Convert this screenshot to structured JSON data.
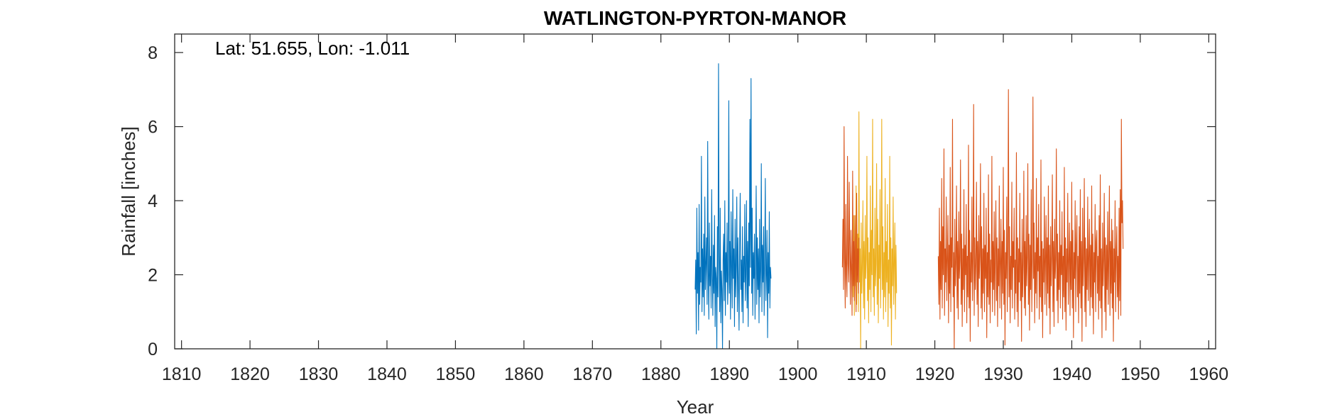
{
  "chart_data": {
    "type": "line",
    "title": "WATLINGTON-PYRTON-MANOR",
    "xlabel": "Year",
    "ylabel": "Rainfall [inches]",
    "annotation": "Lat: 51.655, Lon: -1.011",
    "xlim": [
      1809,
      1961
    ],
    "ylim": [
      0,
      8.5
    ],
    "xticks": [
      1810,
      1820,
      1830,
      1840,
      1850,
      1860,
      1870,
      1880,
      1890,
      1900,
      1910,
      1920,
      1930,
      1940,
      1950,
      1960
    ],
    "yticks": [
      0,
      2,
      4,
      6,
      8
    ],
    "grid": false,
    "box": true,
    "series": [
      {
        "color": "#0072BD",
        "x_start": 1885.0,
        "x_step": 0.0833,
        "values": [
          1.6,
          2.4,
          0.4,
          3.8,
          1.5,
          2.6,
          0.5,
          3.9,
          1.2,
          2.2,
          1.8,
          5.2,
          1.0,
          2.7,
          1.4,
          3.1,
          0.9,
          4.1,
          1.6,
          2.3,
          3.0,
          1.2,
          5.6,
          2.1,
          0.8,
          3.4,
          1.7,
          2.5,
          1.1,
          4.3,
          2.0,
          0.9,
          2.8,
          1.5,
          3.6,
          0.6,
          2.2,
          1.9,
          0.0,
          3.3,
          1.4,
          7.7,
          2.5,
          1.0,
          3.8,
          0.7,
          2.1,
          1.6,
          0.0,
          2.4,
          3.1,
          1.3,
          4.0,
          0.9,
          2.6,
          1.8,
          3.4,
          1.2,
          2.0,
          6.7,
          1.5,
          2.9,
          0.8,
          3.7,
          2.2,
          1.1,
          4.3,
          1.9,
          2.7,
          0.6,
          3.5,
          1.4,
          2.3,
          4.1,
          1.0,
          3.0,
          1.7,
          0.5,
          2.8,
          4.2,
          1.6,
          2.4,
          1.0,
          3.3,
          0.7,
          2.5,
          1.8,
          3.9,
          1.3,
          2.0,
          4.0,
          1.1,
          2.9,
          0.6,
          3.4,
          1.7,
          6.2,
          2.2,
          7.3,
          1.5,
          3.8,
          0.9,
          2.6,
          1.9,
          3.1,
          0.8,
          2.3,
          4.4,
          1.2,
          3.0,
          1.6,
          2.7,
          0.7,
          3.5,
          1.4,
          2.1,
          5.0,
          1.0,
          2.8,
          1.8,
          3.3,
          0.9,
          2.4,
          4.6,
          1.3,
          2.0,
          3.2,
          0.3,
          2.6,
          1.5,
          3.7,
          1.1,
          2.2,
          1.9
        ]
      },
      {
        "color": "#EDB120",
        "x_start": 1908.0,
        "x_step": 0.0833,
        "values": [
          2.3,
          1.4,
          3.6,
          0.9,
          2.8,
          1.7,
          4.4,
          1.2,
          2.5,
          3.1,
          1.0,
          6.4,
          1.8,
          2.7,
          0.0,
          3.4,
          1.5,
          2.2,
          4.0,
          1.1,
          2.9,
          0.8,
          3.6,
          1.9,
          2.4,
          5.2,
          1.3,
          3.0,
          0.7,
          2.6,
          1.6,
          4.4,
          1.0,
          3.2,
          2.0,
          6.2,
          1.4,
          2.7,
          0.9,
          3.8,
          1.7,
          2.3,
          5.0,
          1.2,
          3.5,
          0.7,
          2.8,
          1.9,
          4.3,
          1.1,
          2.5,
          6.2,
          1.6,
          3.3,
          0.8,
          2.6,
          1.4,
          4.6,
          1.0,
          2.9,
          1.8,
          3.9,
          0.6,
          2.4,
          1.5,
          5.2,
          1.1,
          3.0,
          0.1,
          2.7,
          1.7,
          4.1,
          1.2,
          2.3,
          3.4,
          0.8,
          2.8,
          1.5
        ]
      },
      {
        "color": "#D95319",
        "x_start": 1906.5,
        "x_step": 0.0833,
        "values": [
          2.2,
          3.5,
          1.6,
          6.0,
          2.4,
          1.1,
          3.9,
          2.0,
          1.4,
          5.2,
          2.3,
          1.8,
          4.5,
          2.6,
          1.2,
          3.2,
          2.1,
          0.9,
          4.8,
          1.7,
          2.9,
          1.3,
          3.6,
          2.2,
          1.0,
          4.2,
          1.8,
          2.7,
          1.5,
          3.0
        ]
      },
      {
        "color": "#D95319",
        "x_start": 1920.5,
        "x_step": 0.0833,
        "values": [
          2.5,
          1.2,
          3.8,
          0.8,
          2.9,
          1.6,
          4.6,
          1.1,
          3.3,
          2.0,
          5.4,
          0.9,
          2.7,
          1.8,
          4.1,
          1.3,
          2.4,
          3.6,
          0.7,
          2.8,
          1.5,
          4.9,
          1.0,
          3.0,
          2.2,
          6.2,
          1.4,
          2.6,
          0.0,
          3.5,
          1.7,
          2.3,
          4.4,
          1.1,
          2.9,
          0.8,
          3.7,
          1.9,
          2.4,
          5.1,
          1.2,
          3.1,
          0.6,
          2.7,
          1.6,
          4.3,
          1.0,
          2.8,
          2.0,
          3.9,
          0.7,
          2.5,
          1.4,
          5.5,
          1.1,
          3.2,
          0.2,
          2.6,
          1.8,
          4.1,
          1.3,
          2.4,
          6.6,
          0.9,
          3.0,
          1.6,
          2.3,
          4.5,
          1.2,
          2.9,
          0.6,
          3.6,
          1.9,
          2.5,
          5.0,
          1.1,
          3.3,
          0.8,
          2.7,
          1.5,
          4.2,
          1.0,
          2.8,
          1.9,
          3.8,
          0.3,
          2.6,
          1.4,
          4.7,
          1.2,
          3.1,
          0.7,
          2.4,
          1.8,
          5.2,
          1.0,
          2.9,
          1.6,
          3.7,
          0.9,
          2.5,
          4.0,
          1.3,
          3.0,
          0.6,
          2.7,
          1.7,
          4.4,
          1.1,
          2.3,
          3.5,
          0.8,
          2.9,
          1.5,
          4.9,
          1.2,
          3.2,
          0.1,
          2.6,
          1.9,
          4.1,
          1.0,
          2.8,
          7.0,
          1.4,
          3.3,
          0.7,
          2.5,
          1.6,
          4.5,
          1.1,
          2.9,
          2.2,
          3.8,
          0.8,
          2.4,
          1.5,
          5.3,
          1.0,
          3.0,
          0.6,
          2.7,
          1.8,
          4.2,
          1.3,
          2.6,
          0.2,
          3.5,
          1.4,
          2.3,
          4.8,
          1.1,
          2.9,
          0.9,
          3.6,
          1.7,
          2.5,
          5.0,
          1.2,
          3.1,
          0.5,
          2.8,
          1.6,
          4.3,
          1.0,
          2.4,
          6.8,
          1.9,
          3.4,
          0.7,
          2.6,
          1.5,
          4.6,
          1.1,
          3.0,
          2.1,
          3.9,
          0.8,
          2.5,
          1.4,
          5.1,
          1.0,
          2.9,
          0.3,
          2.7,
          1.8,
          4.1,
          1.2,
          2.4,
          3.6,
          0.9,
          3.0,
          1.5,
          4.4,
          1.1,
          2.8,
          0.4,
          3.3,
          1.7,
          2.5,
          4.7,
          1.0,
          2.9,
          0.6,
          3.5,
          1.9,
          2.4,
          5.4,
          1.3,
          3.1,
          0.7,
          2.6,
          1.6,
          4.0,
          1.1,
          2.8,
          2.0,
          3.7,
          0.8,
          2.5,
          1.4,
          4.9,
          1.0,
          3.0,
          0.5,
          2.7,
          1.8,
          4.2,
          1.2,
          2.4,
          3.4,
          0.9,
          2.9,
          1.6,
          4.5,
          1.1,
          3.2,
          0.3,
          2.6,
          1.9,
          4.0,
          1.0,
          2.8,
          3.6,
          1.4,
          2.5,
          0.7,
          3.3,
          1.5,
          4.3,
          1.1,
          2.9,
          0.2,
          3.8,
          1.7,
          2.4,
          4.6,
          1.0,
          3.0,
          0.6,
          2.7,
          1.6,
          4.1,
          1.3,
          2.5,
          3.5,
          0.9,
          2.8,
          1.4,
          4.4,
          1.1,
          3.1,
          0.4,
          2.6,
          1.8,
          3.9,
          1.0,
          2.9,
          3.2,
          1.5,
          2.5,
          0.8,
          3.6,
          1.3,
          4.7,
          1.1,
          2.7,
          0.3,
          3.4,
          1.7,
          2.4,
          4.2,
          1.0,
          3.0,
          0.5,
          2.8,
          1.6,
          3.7,
          1.2,
          2.5,
          4.4,
          0.9,
          2.9,
          1.5,
          3.5,
          1.1,
          3.2,
          0.2,
          2.7,
          1.8,
          4.0,
          1.0,
          2.6,
          3.3,
          1.4,
          2.5,
          0.8,
          3.8,
          1.3,
          4.3,
          0.9,
          6.2,
          3.4,
          4.0,
          2.7
        ]
      }
    ]
  }
}
